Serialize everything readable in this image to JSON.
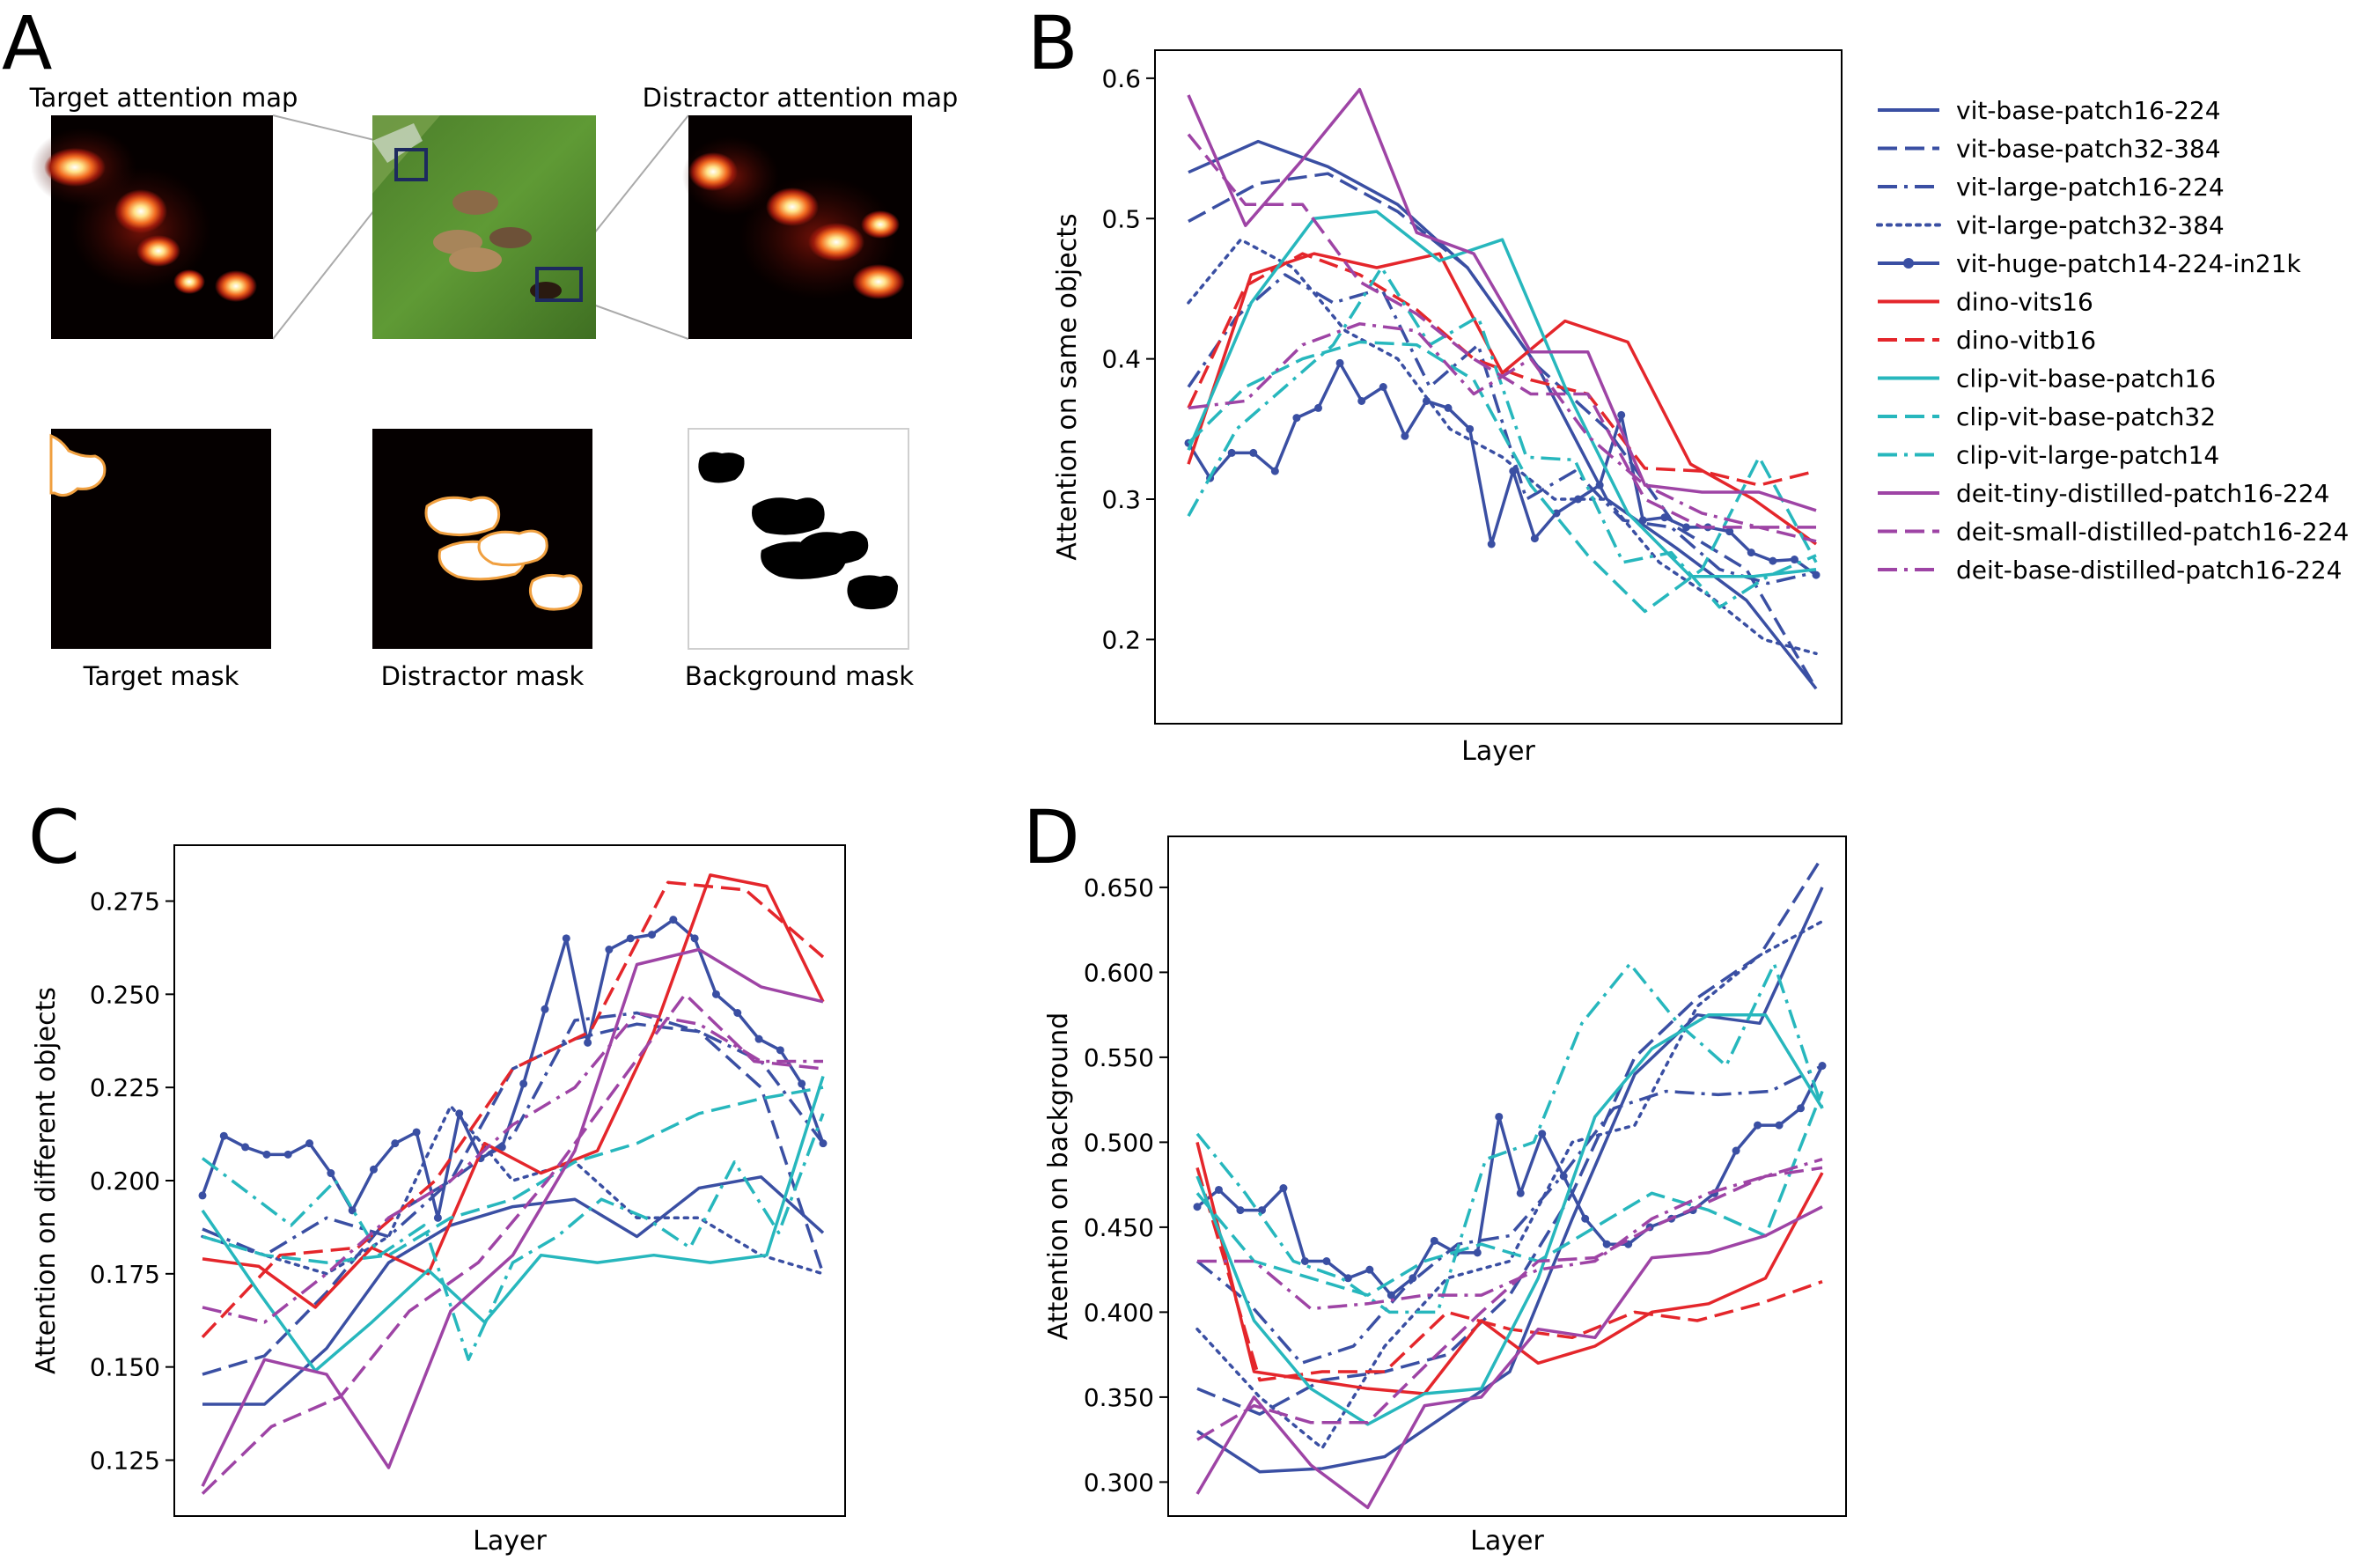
{
  "panel_labels": {
    "A": "A",
    "B": "B",
    "C": "C",
    "D": "D"
  },
  "panel_a": {
    "target_attention_map": "Target attention map",
    "distractor_attention_map": "Distractor attention map",
    "target_mask": "Target mask",
    "distractor_mask": "Distractor mask",
    "background_mask": "Background mask"
  },
  "colors": {
    "blue": "#3a4fa3",
    "red": "#e4262b",
    "teal": "#27b7bd",
    "purple": "#9e44a5"
  },
  "chart_data": [
    {
      "type": "line",
      "title": "",
      "xlabel": "Layer",
      "ylabel": "Attention on same objects",
      "ylim": [
        0.14,
        0.62
      ],
      "yticks": [
        0.2,
        0.3,
        0.4,
        0.5,
        0.6
      ],
      "legend": {
        "placement": "right",
        "entries": [
          "vit-base-patch16-224",
          "vit-base-patch32-384",
          "vit-large-patch16-224",
          "vit-large-patch32-384",
          "vit-huge-patch14-224-in21k",
          "dino-vits16",
          "dino-vitb16",
          "clip-vit-base-patch16",
          "clip-vit-base-patch32",
          "clip-vit-large-patch14",
          "deit-tiny-distilled-patch16-224",
          "deit-small-distilled-patch16-224",
          "deit-base-distilled-patch16-224"
        ]
      },
      "series": [
        {
          "name": "vit-base-patch16-224",
          "color": "#3a4fa3",
          "dash": "solid",
          "values": [
            0.533,
            0.555,
            0.537,
            0.51,
            0.465,
            0.395,
            0.3,
            0.265,
            0.228,
            0.165
          ]
        },
        {
          "name": "vit-base-patch32-384",
          "color": "#3a4fa3",
          "dash": "dashed",
          "values": [
            0.498,
            0.525,
            0.532,
            0.505,
            0.465,
            0.395,
            0.35,
            0.28,
            0.25,
            0.165
          ]
        },
        {
          "name": "vit-large-patch16-224",
          "color": "#3a4fa3",
          "dash": "dashdot",
          "values": [
            0.38,
            0.43,
            0.46,
            0.44,
            0.45,
            0.38,
            0.41,
            0.3,
            0.32,
            0.285,
            0.28,
            0.25,
            0.24,
            0.248
          ]
        },
        {
          "name": "vit-large-patch32-384",
          "color": "#3a4fa3",
          "dash": "dotted",
          "values": [
            0.44,
            0.485,
            0.465,
            0.42,
            0.4,
            0.35,
            0.33,
            0.3,
            0.3,
            0.255,
            0.23,
            0.2,
            0.19
          ]
        },
        {
          "name": "vit-huge-patch14-224-in21k",
          "color": "#3a4fa3",
          "dash": "solid-marker",
          "values": [
            0.34,
            0.315,
            0.333,
            0.333,
            0.32,
            0.358,
            0.365,
            0.397,
            0.37,
            0.38,
            0.345,
            0.37,
            0.365,
            0.35,
            0.268,
            0.32,
            0.272,
            0.29,
            0.3,
            0.31,
            0.36,
            0.285,
            0.287,
            0.28,
            0.28,
            0.277,
            0.262,
            0.256,
            0.257,
            0.246
          ]
        },
        {
          "name": "dino-vits16",
          "color": "#e4262b",
          "dash": "solid",
          "values": [
            0.325,
            0.46,
            0.475,
            0.465,
            0.475,
            0.39,
            0.427,
            0.412,
            0.325,
            0.3,
            0.268
          ]
        },
        {
          "name": "dino-vitb16",
          "color": "#e4262b",
          "dash": "dashed",
          "values": [
            0.365,
            0.452,
            0.475,
            0.46,
            0.435,
            0.4,
            0.385,
            0.375,
            0.322,
            0.32,
            0.31,
            0.32
          ]
        },
        {
          "name": "clip-vit-base-patch16",
          "color": "#27b7bd",
          "dash": "solid",
          "values": [
            0.335,
            0.44,
            0.5,
            0.505,
            0.47,
            0.485,
            0.38,
            0.29,
            0.245,
            0.245,
            0.25
          ]
        },
        {
          "name": "clip-vit-base-patch32",
          "color": "#27b7bd",
          "dash": "dashed",
          "values": [
            0.34,
            0.38,
            0.4,
            0.412,
            0.41,
            0.385,
            0.31,
            0.26,
            0.22,
            0.25,
            0.33,
            0.255
          ]
        },
        {
          "name": "clip-vit-large-patch14",
          "color": "#27b7bd",
          "dash": "dashdot",
          "values": [
            0.288,
            0.35,
            0.38,
            0.41,
            0.465,
            0.41,
            0.43,
            0.33,
            0.328,
            0.255,
            0.262,
            0.223,
            0.245,
            0.26
          ]
        },
        {
          "name": "deit-tiny-distilled-patch16-224",
          "color": "#9e44a5",
          "dash": "solid",
          "values": [
            0.588,
            0.495,
            0.542,
            0.592,
            0.49,
            0.475,
            0.405,
            0.405,
            0.31,
            0.305,
            0.305,
            0.292
          ]
        },
        {
          "name": "deit-small-distilled-patch16-224",
          "color": "#9e44a5",
          "dash": "dashed",
          "values": [
            0.56,
            0.51,
            0.51,
            0.455,
            0.432,
            0.4,
            0.375,
            0.375,
            0.3,
            0.28,
            0.28,
            0.27
          ]
        },
        {
          "name": "deit-base-distilled-patch16-224",
          "color": "#9e44a5",
          "dash": "dashdot",
          "values": [
            0.365,
            0.37,
            0.41,
            0.425,
            0.42,
            0.375,
            0.4,
            0.345,
            0.31,
            0.29,
            0.28,
            0.28
          ]
        }
      ]
    },
    {
      "type": "line",
      "title": "",
      "xlabel": "Layer",
      "ylabel": "Attention on different objects",
      "ylim": [
        0.11,
        0.29
      ],
      "yticks": [
        0.125,
        0.15,
        0.175,
        0.2,
        0.225,
        0.25,
        0.275
      ],
      "series": [
        {
          "name": "vit-base-patch16-224",
          "color": "#3a4fa3",
          "dash": "solid",
          "values": [
            0.14,
            0.14,
            0.155,
            0.178,
            0.188,
            0.193,
            0.195,
            0.185,
            0.198,
            0.201,
            0.186
          ]
        },
        {
          "name": "vit-base-patch32-384",
          "color": "#3a4fa3",
          "dash": "dashed",
          "values": [
            0.148,
            0.153,
            0.17,
            0.19,
            0.2,
            0.23,
            0.238,
            0.242,
            0.24,
            0.225,
            0.175
          ]
        },
        {
          "name": "vit-large-patch16-224",
          "color": "#3a4fa3",
          "dash": "dashdot",
          "values": [
            0.187,
            0.18,
            0.19,
            0.185,
            0.2,
            0.212,
            0.243,
            0.245,
            0.24,
            0.232,
            0.21
          ]
        },
        {
          "name": "vit-large-patch32-384",
          "color": "#3a4fa3",
          "dash": "dotted",
          "values": [
            0.185,
            0.18,
            0.175,
            0.185,
            0.22,
            0.2,
            0.205,
            0.19,
            0.19,
            0.18,
            0.175
          ]
        },
        {
          "name": "vit-huge-patch14-224-in21k",
          "color": "#3a4fa3",
          "dash": "solid-marker",
          "values": [
            0.196,
            0.212,
            0.209,
            0.207,
            0.207,
            0.21,
            0.202,
            0.192,
            0.203,
            0.21,
            0.213,
            0.19,
            0.218,
            0.206,
            0.209,
            0.226,
            0.246,
            0.265,
            0.237,
            0.262,
            0.265,
            0.266,
            0.27,
            0.265,
            0.25,
            0.245,
            0.238,
            0.235,
            0.226,
            0.21
          ]
        },
        {
          "name": "dino-vits16",
          "color": "#e4262b",
          "dash": "solid",
          "values": [
            0.179,
            0.177,
            0.166,
            0.182,
            0.175,
            0.21,
            0.202,
            0.208,
            0.24,
            0.282,
            0.279,
            0.248
          ]
        },
        {
          "name": "dino-vitb16",
          "color": "#e4262b",
          "dash": "dashed",
          "values": [
            0.158,
            0.18,
            0.182,
            0.2,
            0.23,
            0.24,
            0.28,
            0.278,
            0.26
          ]
        },
        {
          "name": "clip-vit-base-patch16",
          "color": "#27b7bd",
          "dash": "solid",
          "values": [
            0.192,
            0.17,
            0.149,
            0.162,
            0.176,
            0.162,
            0.18,
            0.178,
            0.18,
            0.178,
            0.18,
            0.228
          ]
        },
        {
          "name": "clip-vit-base-patch32",
          "color": "#27b7bd",
          "dash": "dashed",
          "values": [
            0.185,
            0.18,
            0.178,
            0.18,
            0.19,
            0.195,
            0.205,
            0.21,
            0.218,
            0.222,
            0.225
          ]
        },
        {
          "name": "clip-vit-large-patch14",
          "color": "#27b7bd",
          "dash": "dashdot",
          "values": [
            0.206,
            0.197,
            0.188,
            0.2,
            0.18,
            0.188,
            0.152,
            0.178,
            0.185,
            0.195,
            0.19,
            0.182,
            0.205,
            0.186,
            0.218
          ]
        },
        {
          "name": "deit-tiny-distilled-patch16-224",
          "color": "#9e44a5",
          "dash": "solid",
          "values": [
            0.118,
            0.152,
            0.148,
            0.123,
            0.165,
            0.18,
            0.208,
            0.258,
            0.262,
            0.252,
            0.248
          ]
        },
        {
          "name": "deit-small-distilled-patch16-224",
          "color": "#9e44a5",
          "dash": "dashed",
          "values": [
            0.116,
            0.134,
            0.142,
            0.165,
            0.178,
            0.2,
            0.225,
            0.25,
            0.232,
            0.23
          ]
        },
        {
          "name": "deit-base-distilled-patch16-224",
          "color": "#9e44a5",
          "dash": "dashdot",
          "values": [
            0.166,
            0.162,
            0.175,
            0.19,
            0.2,
            0.215,
            0.225,
            0.245,
            0.242,
            0.232,
            0.232
          ]
        }
      ]
    },
    {
      "type": "line",
      "title": "",
      "xlabel": "Layer",
      "ylabel": "Attention on background",
      "ylim": [
        0.28,
        0.68
      ],
      "yticks": [
        0.3,
        0.35,
        0.4,
        0.45,
        0.5,
        0.55,
        0.6,
        0.65
      ],
      "series": [
        {
          "name": "vit-base-patch16-224",
          "color": "#3a4fa3",
          "dash": "solid",
          "values": [
            0.33,
            0.306,
            0.308,
            0.315,
            0.34,
            0.365,
            0.455,
            0.54,
            0.575,
            0.57,
            0.65
          ]
        },
        {
          "name": "vit-base-patch32-384",
          "color": "#3a4fa3",
          "dash": "dashed",
          "values": [
            0.355,
            0.34,
            0.36,
            0.365,
            0.375,
            0.41,
            0.47,
            0.55,
            0.585,
            0.61,
            0.668
          ]
        },
        {
          "name": "vit-large-patch16-224",
          "color": "#3a4fa3",
          "dash": "dashdot",
          "values": [
            0.43,
            0.405,
            0.37,
            0.38,
            0.415,
            0.44,
            0.445,
            0.48,
            0.52,
            0.53,
            0.528,
            0.53,
            0.545
          ]
        },
        {
          "name": "vit-large-patch32-384",
          "color": "#3a4fa3",
          "dash": "dotted",
          "values": [
            0.39,
            0.35,
            0.32,
            0.38,
            0.42,
            0.43,
            0.5,
            0.51,
            0.58,
            0.61,
            0.63
          ]
        },
        {
          "name": "vit-huge-patch14-224-in21k",
          "color": "#3a4fa3",
          "dash": "solid-marker",
          "values": [
            0.462,
            0.472,
            0.46,
            0.46,
            0.473,
            0.43,
            0.43,
            0.42,
            0.425,
            0.41,
            0.42,
            0.442,
            0.435,
            0.435,
            0.515,
            0.47,
            0.505,
            0.48,
            0.455,
            0.44,
            0.44,
            0.45,
            0.455,
            0.46,
            0.47,
            0.495,
            0.51,
            0.51,
            0.52,
            0.545
          ]
        },
        {
          "name": "dino-vits16",
          "color": "#e4262b",
          "dash": "solid",
          "values": [
            0.5,
            0.365,
            0.36,
            0.355,
            0.352,
            0.395,
            0.37,
            0.38,
            0.4,
            0.405,
            0.42,
            0.482
          ]
        },
        {
          "name": "dino-vitb16",
          "color": "#e4262b",
          "dash": "dashed",
          "values": [
            0.485,
            0.36,
            0.365,
            0.365,
            0.4,
            0.39,
            0.385,
            0.4,
            0.395,
            0.405,
            0.418
          ]
        },
        {
          "name": "clip-vit-base-patch16",
          "color": "#27b7bd",
          "dash": "solid",
          "values": [
            0.48,
            0.395,
            0.355,
            0.334,
            0.352,
            0.355,
            0.42,
            0.515,
            0.555,
            0.575,
            0.575,
            0.52
          ]
        },
        {
          "name": "clip-vit-base-patch32",
          "color": "#27b7bd",
          "dash": "dashed",
          "values": [
            0.47,
            0.43,
            0.42,
            0.41,
            0.43,
            0.44,
            0.43,
            0.45,
            0.47,
            0.46,
            0.445,
            0.53
          ]
        },
        {
          "name": "clip-vit-large-patch14",
          "color": "#27b7bd",
          "dash": "dashdot",
          "values": [
            0.505,
            0.47,
            0.43,
            0.42,
            0.4,
            0.4,
            0.49,
            0.5,
            0.57,
            0.605,
            0.57,
            0.545,
            0.605,
            0.52
          ]
        },
        {
          "name": "deit-tiny-distilled-patch16-224",
          "color": "#9e44a5",
          "dash": "solid",
          "values": [
            0.293,
            0.35,
            0.31,
            0.285,
            0.345,
            0.35,
            0.39,
            0.385,
            0.432,
            0.435,
            0.445,
            0.462
          ]
        },
        {
          "name": "deit-small-distilled-patch16-224",
          "color": "#9e44a5",
          "dash": "dashed",
          "values": [
            0.325,
            0.345,
            0.335,
            0.335,
            0.368,
            0.4,
            0.43,
            0.432,
            0.45,
            0.465,
            0.48,
            0.485
          ]
        },
        {
          "name": "deit-base-distilled-patch16-224",
          "color": "#9e44a5",
          "dash": "dashdot",
          "values": [
            0.43,
            0.43,
            0.402,
            0.405,
            0.41,
            0.41,
            0.425,
            0.43,
            0.455,
            0.47,
            0.48,
            0.49
          ]
        }
      ]
    }
  ]
}
